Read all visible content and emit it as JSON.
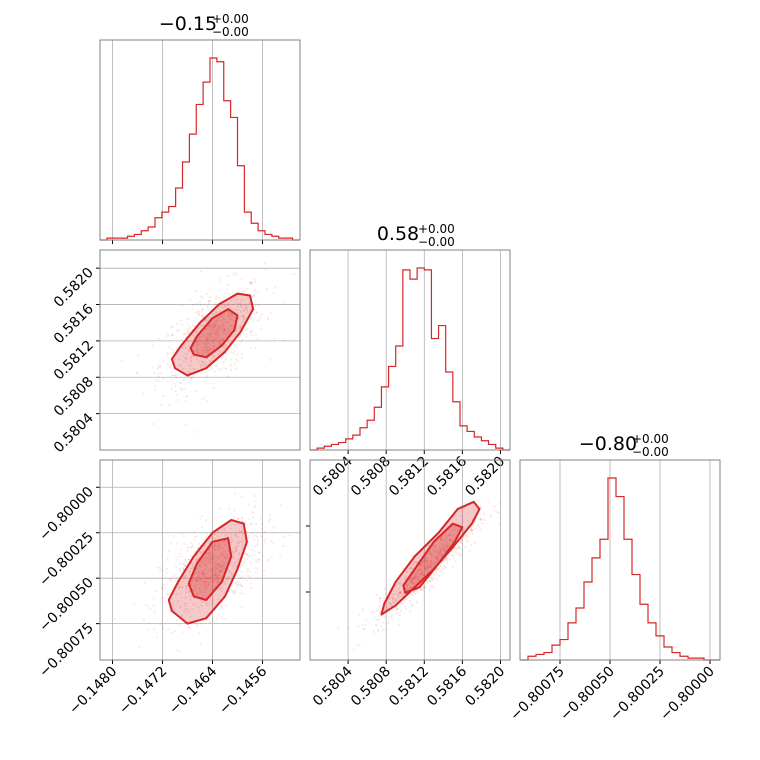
{
  "colors": {
    "series": "#d62728",
    "grid": "#b0b0b0",
    "frame": "#808080"
  },
  "chart_data": [
    {
      "type": "histogram",
      "panel": "diag-0",
      "title": {
        "main": "−0.15",
        "sup": "+0.00",
        "sub": "−0.00"
      },
      "xlim": [
        -0.1482,
        -0.145
      ],
      "xticks": [
        -0.148,
        -0.1472,
        -0.1464,
        -0.1456
      ],
      "grid": true,
      "peak_center": -0.1464,
      "bin_edges": [
        -0.1482,
        -0.14809,
        -0.14798,
        -0.14787,
        -0.14776,
        -0.14765,
        -0.14754,
        -0.14743,
        -0.14732,
        -0.14721,
        -0.1471,
        -0.14699,
        -0.14688,
        -0.14677,
        -0.14666,
        -0.14655,
        -0.14644,
        -0.14633,
        -0.14622,
        -0.14611,
        -0.146,
        -0.14589,
        -0.14578,
        -0.14567,
        -0.14556,
        -0.14545,
        -0.14534,
        -0.14523,
        -0.14512,
        -0.14501
      ],
      "counts": [
        0,
        0.01,
        0.01,
        0.01,
        0.02,
        0.03,
        0.05,
        0.07,
        0.12,
        0.15,
        0.18,
        0.28,
        0.42,
        0.57,
        0.73,
        0.85,
        0.98,
        0.96,
        0.75,
        0.66,
        0.4,
        0.15,
        0.09,
        0.05,
        0.03,
        0.02,
        0.01,
        0.01,
        0
      ]
    },
    {
      "type": "histogram",
      "panel": "diag-1",
      "title": {
        "main": "0.58",
        "sup": "+0.00",
        "sub": "−0.00"
      },
      "xlim": [
        0.58,
        0.5821
      ],
      "xticks": [
        0.5804,
        0.5808,
        0.5812,
        0.5816,
        0.582
      ],
      "xticklabels": [
        "0.5804",
        "0.5808",
        "0.5812",
        "0.5816",
        "0.5820"
      ],
      "grid": true,
      "bin_edges": [
        0.58,
        0.580075,
        0.58015,
        0.580225,
        0.5803,
        0.580375,
        0.58045,
        0.580525,
        0.5806,
        0.580675,
        0.58075,
        0.580825,
        0.5809,
        0.580975,
        0.58105,
        0.581125,
        0.5812,
        0.581275,
        0.58135,
        0.581425,
        0.5815,
        0.581575,
        0.58165,
        0.581725,
        0.5818,
        0.581875,
        0.58195,
        0.582025,
        0.5821
      ],
      "counts": [
        0,
        0.01,
        0.02,
        0.03,
        0.04,
        0.06,
        0.08,
        0.12,
        0.16,
        0.23,
        0.34,
        0.45,
        0.56,
        0.97,
        0.92,
        0.98,
        0.97,
        0.6,
        0.67,
        0.42,
        0.26,
        0.13,
        0.1,
        0.07,
        0.05,
        0.03,
        0.01,
        0
      ]
    },
    {
      "type": "histogram",
      "panel": "diag-2",
      "title": {
        "main": "−0.80",
        "sup": "+0.00",
        "sub": "−0.00"
      },
      "xlim": [
        -0.80095,
        -0.79995
      ],
      "xticks": [
        -0.80075,
        -0.8005,
        -0.80025,
        -0.8
      ],
      "xticklabels": [
        "−0.80075",
        "−0.80050",
        "−0.80025",
        "−0.80000"
      ],
      "grid": true,
      "bin_edges": [
        -0.80095,
        -0.80091,
        -0.80087,
        -0.80083,
        -0.80079,
        -0.80075,
        -0.80071,
        -0.80067,
        -0.80063,
        -0.80059,
        -0.80055,
        -0.80051,
        -0.80047,
        -0.80043,
        -0.80039,
        -0.80035,
        -0.80031,
        -0.80027,
        -0.80023,
        -0.80019,
        -0.80015,
        -0.80011,
        -0.80007,
        -0.80003,
        -0.79999,
        -0.79995
      ],
      "counts": [
        0,
        0.02,
        0.03,
        0.04,
        0.08,
        0.11,
        0.2,
        0.28,
        0.42,
        0.55,
        0.65,
        0.98,
        0.88,
        0.65,
        0.46,
        0.3,
        0.2,
        0.13,
        0.07,
        0.04,
        0.02,
        0.01,
        0.01,
        0,
        0
      ]
    },
    {
      "type": "scatter-contour",
      "panel": "offdiag-1-0",
      "xlim": [
        -0.1482,
        -0.145
      ],
      "ylim": [
        0.58,
        0.5822
      ],
      "yticks": [
        0.5804,
        0.5808,
        0.5812,
        0.5816,
        0.582
      ],
      "yticklabels": [
        "0.5804",
        "0.5808",
        "0.5812",
        "0.5816",
        "0.5820"
      ],
      "grid": true,
      "center": [
        -0.1464,
        0.58125
      ],
      "contour_levels": [
        {
          "x": [
            -0.147,
            -0.1468,
            -0.1465,
            -0.1462,
            -0.14595,
            -0.14575,
            -0.1458,
            -0.146,
            -0.1463,
            -0.1466,
            -0.1469,
            -0.14705
          ],
          "y": [
            0.5809,
            0.58082,
            0.5809,
            0.58108,
            0.5813,
            0.58155,
            0.5817,
            0.58172,
            0.5816,
            0.5814,
            0.58115,
            0.581
          ]
        },
        {
          "x": [
            -0.1467,
            -0.1465,
            -0.14625,
            -0.14605,
            -0.146,
            -0.14615,
            -0.1464,
            -0.14665,
            -0.14675
          ],
          "y": [
            0.58105,
            0.58102,
            0.58115,
            0.58132,
            0.58148,
            0.58155,
            0.58145,
            0.58125,
            0.58112
          ]
        }
      ]
    },
    {
      "type": "scatter-contour",
      "panel": "offdiag-2-0",
      "xlim": [
        -0.1482,
        -0.145
      ],
      "ylim": [
        -0.80095,
        -0.79985
      ],
      "xticks": [
        -0.148,
        -0.1472,
        -0.1464,
        -0.1456
      ],
      "xticklabels": [
        "−0.1480",
        "−0.1472",
        "−0.1464",
        "−0.1456"
      ],
      "yticks": [
        -0.80075,
        -0.8005,
        -0.80025,
        -0.8
      ],
      "yticklabels": [
        "−0.80075",
        "−0.80050",
        "−0.80025",
        "−0.80000"
      ],
      "grid": true,
      "center": [
        -0.1464,
        -0.80045
      ],
      "contour_levels": [
        {
          "x": [
            -0.14705,
            -0.1468,
            -0.1465,
            -0.1462,
            -0.146,
            -0.14585,
            -0.1459,
            -0.1461,
            -0.1464,
            -0.1467,
            -0.14695,
            -0.1471
          ],
          "y": [
            -0.80068,
            -0.80075,
            -0.80072,
            -0.8006,
            -0.80045,
            -0.8003,
            -0.8002,
            -0.80018,
            -0.80025,
            -0.80038,
            -0.80052,
            -0.80062
          ]
        },
        {
          "x": [
            -0.1467,
            -0.1465,
            -0.14625,
            -0.1461,
            -0.14615,
            -0.1464,
            -0.14665,
            -0.14678
          ],
          "y": [
            -0.8006,
            -0.80062,
            -0.80052,
            -0.80038,
            -0.80028,
            -0.8003,
            -0.80042,
            -0.80053
          ]
        }
      ]
    },
    {
      "type": "scatter-contour",
      "panel": "offdiag-2-1",
      "xlim": [
        0.58,
        0.5821
      ],
      "ylim": [
        -0.80095,
        -0.79985
      ],
      "xticks": [
        0.5804,
        0.5808,
        0.5812,
        0.5816,
        0.582
      ],
      "xticklabels": [
        "0.5804",
        "0.5808",
        "0.5812",
        "0.5816",
        "0.5820"
      ],
      "grid": true,
      "center": [
        0.58122,
        -0.80045
      ],
      "contour_levels": [
        {
          "x": [
            0.58075,
            0.5809,
            0.5811,
            0.5813,
            0.5815,
            0.5817,
            0.58178,
            0.58172,
            0.58155,
            0.58135,
            0.5811,
            0.5809,
            0.58078
          ],
          "y": [
            -0.8007,
            -0.80065,
            -0.80055,
            -0.80045,
            -0.80033,
            -0.8002,
            -0.80012,
            -0.80008,
            -0.80012,
            -0.80025,
            -0.80038,
            -0.80052,
            -0.80064
          ]
        },
        {
          "x": [
            0.581,
            0.58115,
            0.58135,
            0.58152,
            0.5816,
            0.5815,
            0.5813,
            0.5811,
            0.58098
          ],
          "y": [
            -0.80058,
            -0.80055,
            -0.80042,
            -0.8003,
            -0.80022,
            -0.8002,
            -0.8003,
            -0.80045,
            -0.80054
          ]
        }
      ]
    }
  ]
}
